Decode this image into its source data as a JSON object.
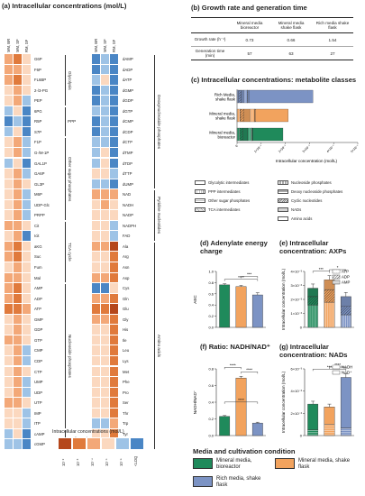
{
  "panel_a": {
    "title": "(a) Intracellular concentrations (mol/L)",
    "col_headers": [
      "MM, BR",
      "MM, SF",
      "RM, SF"
    ],
    "legend_title": "Intracellular concentrations (mol/L)",
    "legend_ticks": [
      "10⁻²",
      "10⁻³",
      "10⁻⁴",
      "10⁻⁵",
      "10⁻⁶",
      "<LOQ"
    ],
    "legend_colors": [
      "#b5471b",
      "#e07a3c",
      "#f3a878",
      "#fbd8bf",
      "#9ec3e6",
      "#4a86c5"
    ],
    "left_rows": [
      {
        "name": "G6P",
        "c": [
          2,
          1,
          3
        ]
      },
      {
        "name": "F6P",
        "c": [
          2,
          2,
          3
        ]
      },
      {
        "name": "FL6BP",
        "c": [
          2,
          1,
          3
        ]
      },
      {
        "name": "2-/3-PG",
        "c": [
          3,
          2,
          3
        ]
      },
      {
        "name": "PEP",
        "c": [
          3,
          2,
          4
        ]
      },
      {
        "name": "6PG",
        "c": [
          4,
          3,
          5
        ]
      },
      {
        "name": "R5P",
        "c": [
          5,
          4,
          5
        ]
      },
      {
        "name": "S7P",
        "c": [
          4,
          3,
          5
        ]
      },
      {
        "name": "F1P",
        "c": [
          3,
          2,
          4
        ]
      },
      {
        "name": "G-/M-1P",
        "c": [
          3,
          2,
          4
        ]
      },
      {
        "name": "GAL1P",
        "c": [
          4,
          3,
          5
        ]
      },
      {
        "name": "GA6P",
        "c": [
          3,
          2,
          4
        ]
      },
      {
        "name": "GL3P",
        "c": [
          3,
          2,
          3
        ]
      },
      {
        "name": "M6P",
        "c": [
          3,
          2,
          4
        ]
      },
      {
        "name": "UDP-Glc",
        "c": [
          3,
          2,
          4
        ]
      },
      {
        "name": "PRPP",
        "c": [
          3,
          2,
          4
        ]
      },
      {
        "name": "Cit",
        "c": [
          2,
          2,
          3
        ]
      },
      {
        "name": "Icit",
        "c": [
          3,
          2,
          5
        ]
      },
      {
        "name": "aKG",
        "c": [
          2,
          1,
          3
        ]
      },
      {
        "name": "Suc",
        "c": [
          2,
          1,
          3
        ]
      },
      {
        "name": "Fum",
        "c": [
          3,
          2,
          3
        ]
      },
      {
        "name": "Mal",
        "c": [
          2,
          2,
          3
        ]
      },
      {
        "name": "AMP",
        "c": [
          2,
          1,
          3
        ]
      },
      {
        "name": "ADP",
        "c": [
          2,
          1,
          3
        ]
      },
      {
        "name": "ATP",
        "c": [
          1,
          1,
          2
        ]
      },
      {
        "name": "GMP",
        "c": [
          3,
          2,
          3
        ]
      },
      {
        "name": "GDP",
        "c": [
          3,
          2,
          3
        ]
      },
      {
        "name": "GTP",
        "c": [
          2,
          2,
          3
        ]
      },
      {
        "name": "CMP",
        "c": [
          3,
          2,
          4
        ]
      },
      {
        "name": "CDP",
        "c": [
          3,
          2,
          4
        ]
      },
      {
        "name": "CTP",
        "c": [
          3,
          2,
          3
        ]
      },
      {
        "name": "UMP",
        "c": [
          3,
          2,
          4
        ]
      },
      {
        "name": "UDP",
        "c": [
          3,
          2,
          4
        ]
      },
      {
        "name": "UTP",
        "c": [
          2,
          2,
          3
        ]
      },
      {
        "name": "IMP",
        "c": [
          3,
          3,
          4
        ]
      },
      {
        "name": "ITP",
        "c": [
          3,
          3,
          4
        ]
      },
      {
        "name": "cAMP",
        "c": [
          4,
          3,
          5
        ]
      },
      {
        "name": "cGMP",
        "c": [
          4,
          4,
          5
        ]
      }
    ],
    "left_groups": [
      {
        "name": "Glycolysis",
        "start": 0,
        "n": 5
      },
      {
        "name": "PPP",
        "start": 5,
        "n": 3
      },
      {
        "name": "Other sugar phosphates",
        "start": 8,
        "n": 8
      },
      {
        "name": "TCA cycle",
        "start": 16,
        "n": 6
      },
      {
        "name": "Nucleoside phosphates",
        "start": 22,
        "n": 14
      },
      {
        "name": "Cyclic nucleo-tides",
        "start": 36,
        "n": 2
      }
    ],
    "right_rows": [
      {
        "name": "dAMP",
        "c": [
          5,
          4,
          5
        ]
      },
      {
        "name": "dADP",
        "c": [
          5,
          4,
          5
        ]
      },
      {
        "name": "dATP",
        "c": [
          4,
          3,
          5
        ]
      },
      {
        "name": "dGMP",
        "c": [
          5,
          4,
          5
        ]
      },
      {
        "name": "dGDP",
        "c": [
          5,
          4,
          5
        ]
      },
      {
        "name": "dGTP",
        "c": [
          4,
          4,
          5
        ]
      },
      {
        "name": "dCMP",
        "c": [
          5,
          4,
          5
        ]
      },
      {
        "name": "dCDP",
        "c": [
          5,
          4,
          5
        ]
      },
      {
        "name": "dCTP",
        "c": [
          4,
          4,
          5
        ]
      },
      {
        "name": "dTMP",
        "c": [
          4,
          3,
          5
        ]
      },
      {
        "name": "dTDP",
        "c": [
          4,
          3,
          5
        ]
      },
      {
        "name": "dTTP",
        "c": [
          3,
          3,
          4
        ]
      },
      {
        "name": "dUMP",
        "c": [
          4,
          4,
          5
        ]
      },
      {
        "name": "NAD",
        "c": [
          2,
          2,
          2
        ]
      },
      {
        "name": "NADH",
        "c": [
          3,
          2,
          3
        ]
      },
      {
        "name": "NADP",
        "c": [
          3,
          3,
          3
        ]
      },
      {
        "name": "NADPH",
        "c": [
          3,
          3,
          4
        ]
      },
      {
        "name": "FAD",
        "c": [
          3,
          3,
          4
        ]
      },
      {
        "name": "Ala",
        "c": [
          2,
          2,
          0
        ]
      },
      {
        "name": "Arg",
        "c": [
          3,
          3,
          1
        ]
      },
      {
        "name": "Asn",
        "c": [
          3,
          3,
          1
        ]
      },
      {
        "name": "Asp",
        "c": [
          2,
          2,
          1
        ]
      },
      {
        "name": "Cys",
        "c": [
          5,
          5,
          3
        ]
      },
      {
        "name": "Gln",
        "c": [
          2,
          2,
          1
        ]
      },
      {
        "name": "Glu",
        "c": [
          1,
          1,
          0
        ]
      },
      {
        "name": "Gly",
        "c": [
          2,
          2,
          1
        ]
      },
      {
        "name": "His",
        "c": [
          3,
          3,
          1
        ]
      },
      {
        "name": "Ile",
        "c": [
          3,
          3,
          1
        ]
      },
      {
        "name": "Leu",
        "c": [
          3,
          3,
          1
        ]
      },
      {
        "name": "Lys",
        "c": [
          3,
          3,
          1
        ]
      },
      {
        "name": "Met",
        "c": [
          3,
          3,
          1
        ]
      },
      {
        "name": "Phe",
        "c": [
          3,
          3,
          1
        ]
      },
      {
        "name": "Pro",
        "c": [
          3,
          3,
          1
        ]
      },
      {
        "name": "Ser",
        "c": [
          3,
          3,
          1
        ]
      },
      {
        "name": "Thr",
        "c": [
          3,
          3,
          1
        ]
      },
      {
        "name": "Trp",
        "c": [
          4,
          4,
          2
        ]
      },
      {
        "name": "Tyr",
        "c": [
          3,
          3,
          1
        ]
      },
      {
        "name": "Val",
        "c": [
          3,
          3,
          1
        ]
      }
    ],
    "right_groups": [
      {
        "name": "Deoxynucleoside phosphates",
        "start": 0,
        "n": 13
      },
      {
        "name": "Pyridine nucleotides",
        "start": 13,
        "n": 5
      },
      {
        "name": "Amino acids",
        "start": 18,
        "n": 20
      }
    ]
  },
  "panel_b": {
    "title": "(b) Growth rate and generation time",
    "headers": [
      "",
      "Mineral media bioreactor",
      "Mineral media shake flask",
      "Rich media shake flask"
    ],
    "rows": [
      {
        "label": "Growth rate (h⁻¹)",
        "vals": [
          "0.73",
          "0.66",
          "1.54"
        ]
      },
      {
        "label": "Generation time (min)",
        "vals": [
          "57",
          "63",
          "27"
        ]
      }
    ]
  },
  "panel_c": {
    "title": "(c) Intracellular concentrations: metabolite classes",
    "rows": [
      "Rich Media, shake flask",
      "Mineral media, shake flask",
      "Mineral media, bioreactor"
    ],
    "xticks": [
      "0",
      "1×10⁻¹",
      "2×10⁻¹",
      "3×10⁻¹",
      "4×10⁻¹",
      "5×10⁻¹"
    ],
    "xlabel": "Intracellular concentration (mol/L)",
    "legend": [
      "Glycolytic intermediates",
      "PPP intermediates",
      "Other sugar phosphates",
      "TCA intermediates",
      "Nucleoside phosphates",
      "Deoxy nucleoside phosphates",
      "Cyclic nucleotides",
      "NADs",
      "Amino acids"
    ]
  },
  "panel_d": {
    "title": "(d) Adenylate energy charge",
    "ylabel": "AEC",
    "yticks": [
      "0.0",
      "0.2",
      "0.4",
      "0.6",
      "0.8",
      "1.0"
    ],
    "sig": [
      "****",
      "***"
    ]
  },
  "panel_e": {
    "title": "(e) Intracellular concentration: AXPs",
    "ylabel": "Intracellular concentration (mol/L)",
    "yticks": [
      "0",
      "1×10⁻³",
      "2×10⁻³",
      "3×10⁻³",
      "4×10⁻³"
    ],
    "legend": [
      "ATP",
      "ADP",
      "AMP"
    ],
    "sig": [
      "***",
      "*"
    ]
  },
  "panel_f": {
    "title": "(f) Ratio: NADH/NAD⁺",
    "ylabel": "NADH/NAD⁺",
    "yticks": [
      "0.0",
      "0.2",
      "0.4",
      "0.6",
      "0.8"
    ],
    "sig": [
      "****",
      "****",
      "****"
    ]
  },
  "panel_g": {
    "title": "(g) Intracellular concentration: NADs",
    "ylabel": "Intracellular concentration (mol/L)",
    "yticks": [
      "0",
      "2×10⁻³",
      "4×10⁻³",
      "6×10⁻³"
    ],
    "legend": [
      "NADH",
      "NAD⁺"
    ],
    "sig": [
      "***",
      "****"
    ]
  },
  "conditions": {
    "title": "Media and cultivation condition",
    "items": [
      {
        "label": "Mineral media, bioreactor",
        "color": "#1f8a5b"
      },
      {
        "label": "Mineral media, shake flask",
        "color": "#f2a35e"
      },
      {
        "label": "Rich media, shake flask",
        "color": "#7c93c4"
      }
    ]
  },
  "chart_data": [
    {
      "type": "bar",
      "title": "Adenylate energy charge",
      "ylabel": "AEC",
      "ylim": [
        0,
        1.0
      ],
      "categories": [
        "Mineral media, bioreactor",
        "Mineral media, shake flask",
        "Rich media, shake flask"
      ],
      "values": [
        0.76,
        0.73,
        0.58
      ],
      "errors": [
        0.02,
        0.02,
        0.04
      ]
    },
    {
      "type": "bar",
      "title": "Intracellular concentration: AXPs",
      "ylabel": "Intracellular concentration (mol/L)",
      "ylim": [
        0,
        0.004
      ],
      "categories": [
        "Mineral media, bioreactor",
        "Mineral media, shake flask",
        "Rich media, shake flask"
      ],
      "series": [
        {
          "name": "ATP",
          "values": [
            0.0016,
            0.0018,
            0.0009
          ]
        },
        {
          "name": "ADP",
          "values": [
            0.0006,
            0.0009,
            0.0006
          ]
        },
        {
          "name": "AMP",
          "values": [
            0.0006,
            0.0007,
            0.0007
          ]
        }
      ],
      "totals_err": [
        0.0003,
        0.0003,
        0.0003
      ]
    },
    {
      "type": "bar",
      "title": "Ratio: NADH/NAD⁺",
      "ylabel": "NADH/NAD⁺",
      "ylim": [
        0,
        0.8
      ],
      "categories": [
        "Mineral media, bioreactor",
        "Mineral media, shake flask",
        "Rich media, shake flask"
      ],
      "values": [
        0.23,
        0.69,
        0.15
      ],
      "errors": [
        0.01,
        0.02,
        0.01
      ]
    },
    {
      "type": "bar",
      "title": "Intracellular concentration: NADs",
      "ylabel": "Intracellular concentration (mol/L)",
      "ylim": [
        0,
        0.007
      ],
      "categories": [
        "Mineral media, bioreactor",
        "Mineral media, shake flask",
        "Rich media, shake flask"
      ],
      "series": [
        {
          "name": "NADH",
          "values": [
            0.0006,
            0.0012,
            0.0008
          ]
        },
        {
          "name": "NAD⁺",
          "values": [
            0.0027,
            0.0018,
            0.0053
          ]
        }
      ],
      "totals_err": [
        0.0003,
        0.0003,
        0.0004
      ]
    },
    {
      "type": "bar",
      "orientation": "horizontal",
      "stacked": true,
      "title": "Intracellular concentrations: metabolite classes",
      "xlabel": "Intracellular concentration (mol/L)",
      "xlim": [
        0,
        0.5
      ],
      "categories": [
        "Rich Media, shake flask",
        "Mineral media, shake flask",
        "Mineral media, bioreactor"
      ],
      "series": [
        {
          "name": "Glycolytic intermediates",
          "values": [
            0.006,
            0.012,
            0.01
          ]
        },
        {
          "name": "PPP intermediates",
          "values": [
            0.001,
            0.001,
            0.001
          ]
        },
        {
          "name": "Other sugar phosphates",
          "values": [
            0.01,
            0.015,
            0.012
          ]
        },
        {
          "name": "TCA intermediates",
          "values": [
            0.01,
            0.025,
            0.02
          ]
        },
        {
          "name": "Nucleoside phosphates",
          "values": [
            0.015,
            0.02,
            0.018
          ]
        },
        {
          "name": "Deoxy nucleoside phosphates",
          "values": [
            0.001,
            0.001,
            0.001
          ]
        },
        {
          "name": "Cyclic nucleotides",
          "values": [
            0.0002,
            0.0002,
            0.0002
          ]
        },
        {
          "name": "NADs",
          "values": [
            0.006,
            0.003,
            0.003
          ]
        },
        {
          "name": "Amino acids",
          "values": [
            0.265,
            0.135,
            0.125
          ]
        }
      ]
    }
  ]
}
